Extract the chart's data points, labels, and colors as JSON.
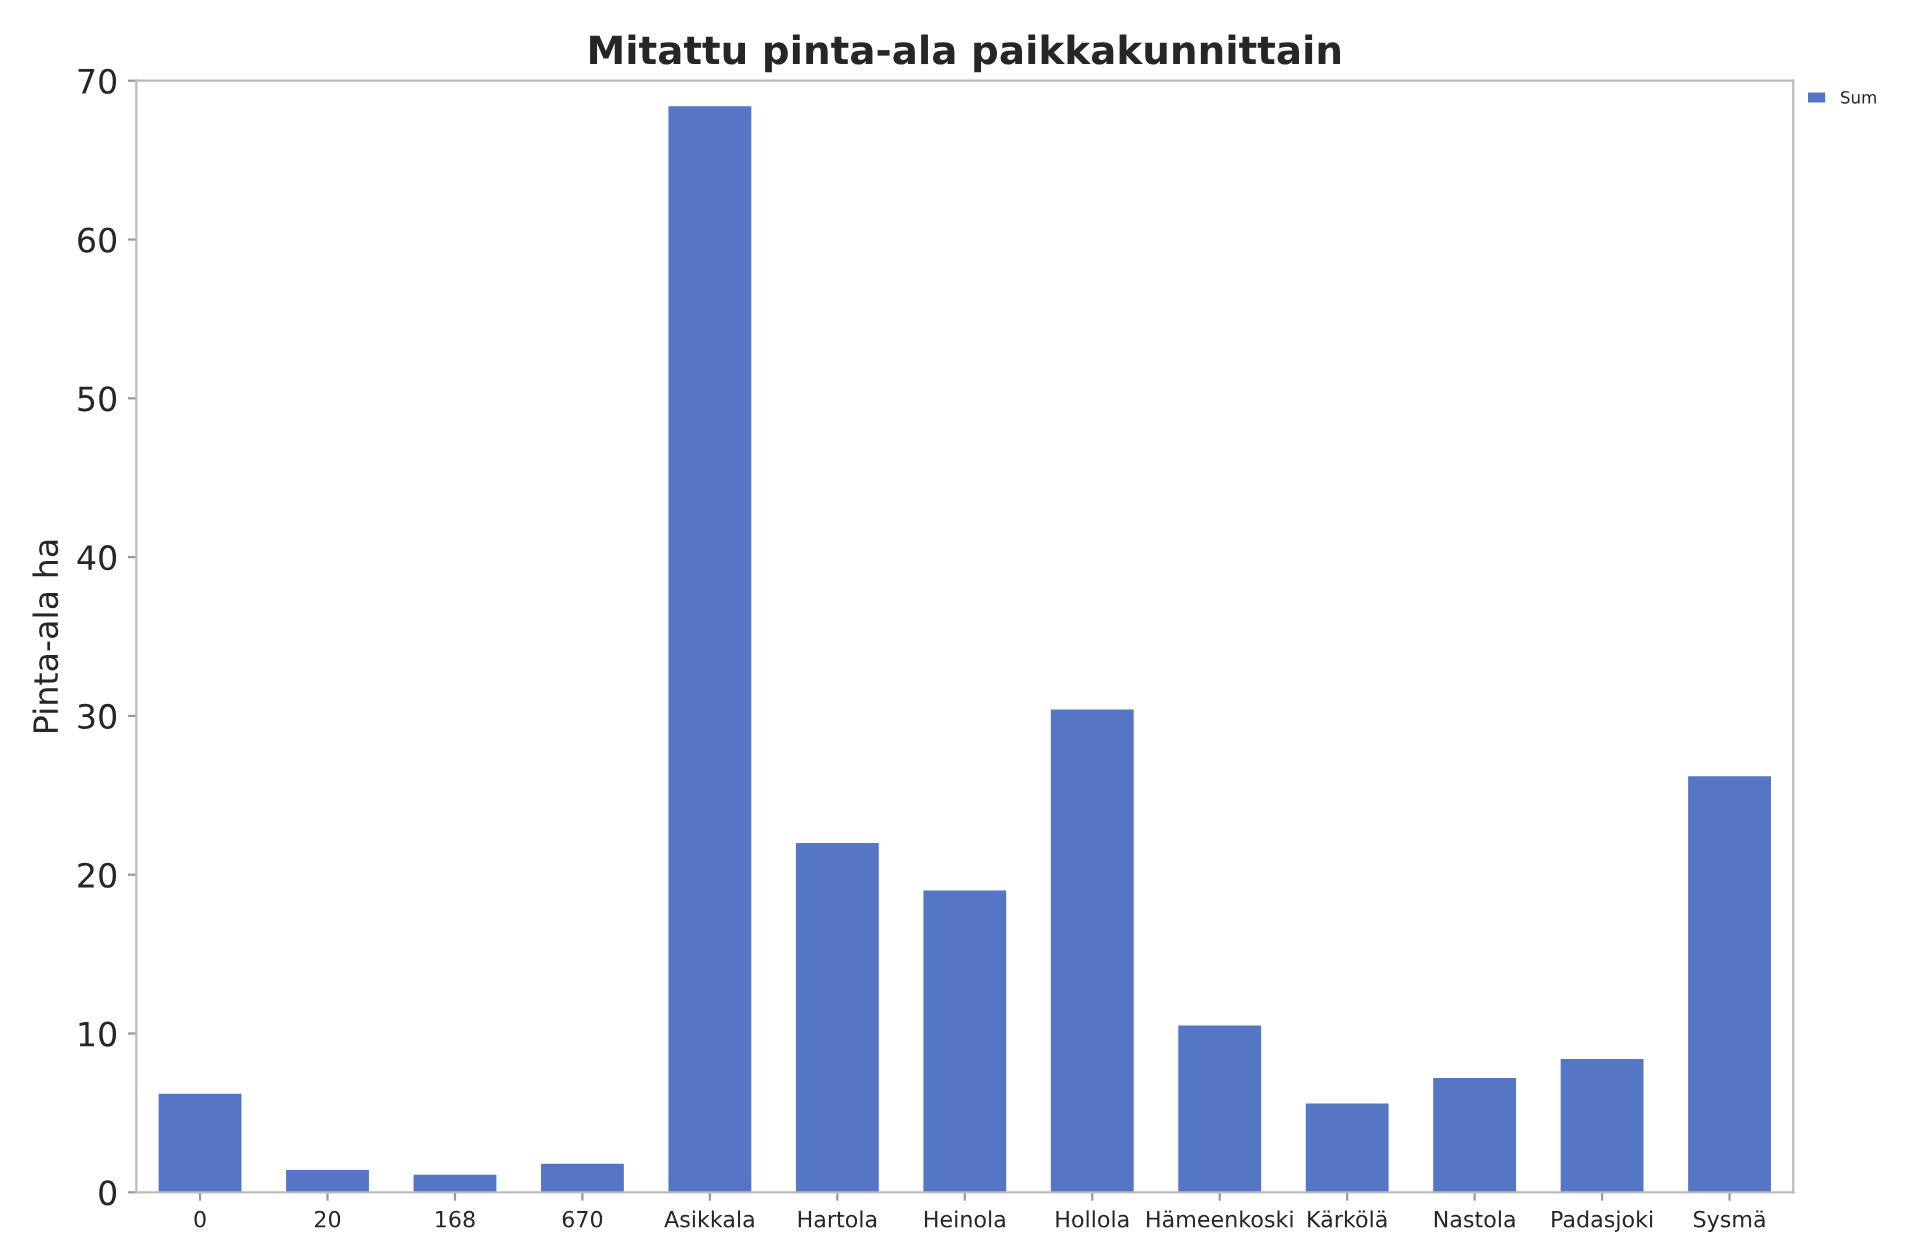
{
  "chart_data": {
    "type": "bar",
    "title": "Mitattu pinta-ala paikkakunnittain",
    "ylabel": "Pinta-ala ha",
    "categories": [
      "0",
      "20",
      "168",
      "670",
      "Asikkala",
      "Hartola",
      "Heinola",
      "Hollola",
      "Hämeenkoski",
      "Kärkölä",
      "Nastola",
      "Padasjoki",
      "Sysmä"
    ],
    "series": [
      {
        "name": "Sum",
        "color": "#5575c5",
        "values": [
          6.2,
          1.4,
          1.1,
          1.8,
          68.4,
          22.0,
          19.0,
          30.4,
          10.5,
          5.6,
          7.2,
          8.4,
          26.2
        ]
      }
    ],
    "ylim": [
      0,
      70
    ],
    "yticks": [
      0,
      10,
      20,
      30,
      40,
      50,
      60,
      70
    ],
    "grid": false,
    "legend": "top right"
  }
}
